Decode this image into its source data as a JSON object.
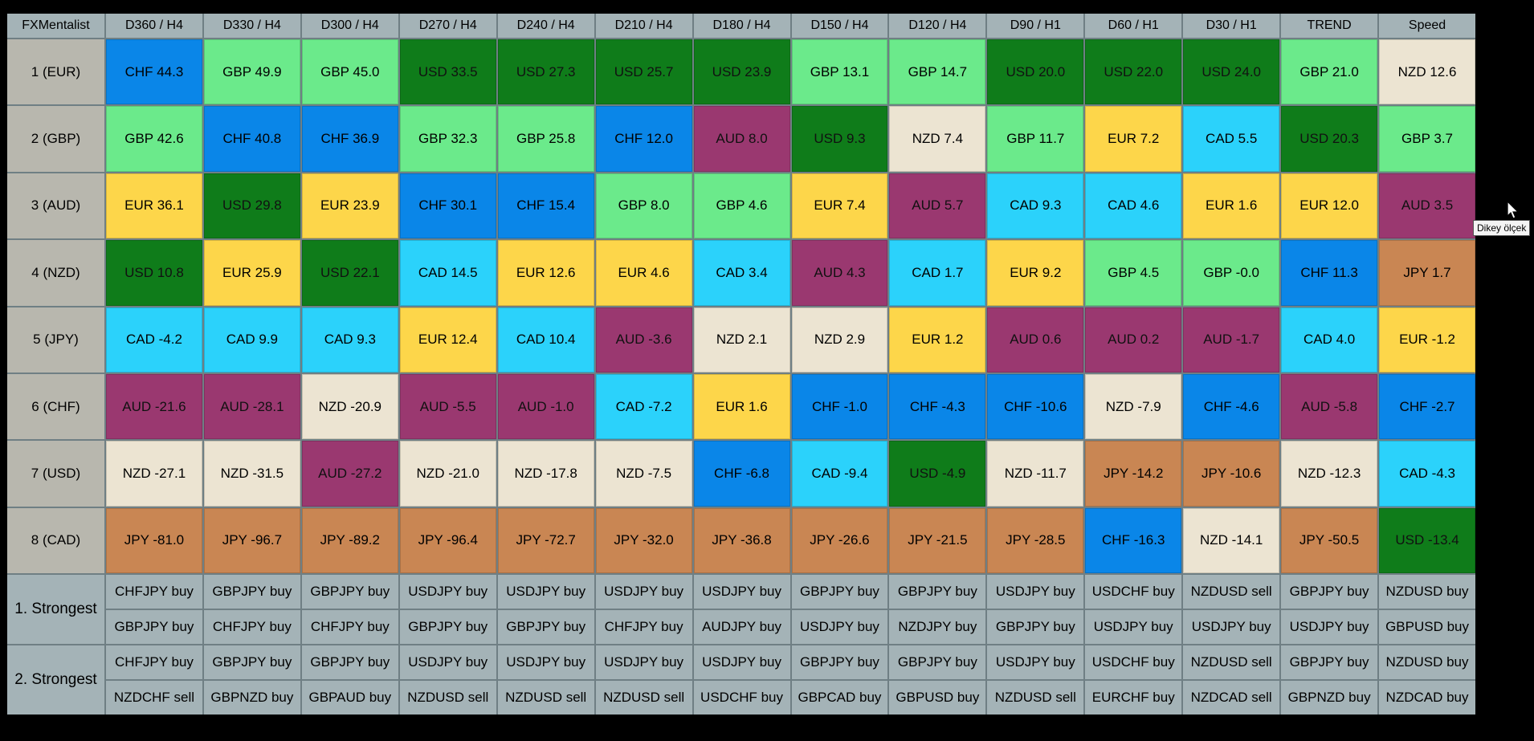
{
  "colors": {
    "CHF": "#0a86e8",
    "GBP": "#6bea8b",
    "USD": "#0f7c1a",
    "NZD": "#ece4d2",
    "AUD": "#9a3870",
    "EUR": "#fdd64a",
    "CAD": "#2bd2fb",
    "JPY": "#c98653"
  },
  "header": [
    "FXMentalist",
    "D360 / H4",
    "D330 / H4",
    "D300 / H4",
    "D270 / H4",
    "D240 / H4",
    "D210 / H4",
    "D180 / H4",
    "D150 / H4",
    "D120 / H4",
    "D90 / H1",
    "D60 / H1",
    "D30 / H1",
    "TREND",
    "Speed"
  ],
  "rows": [
    {
      "label": "1 (EUR)",
      "cells": [
        {
          "cur": "CHF",
          "text": "CHF 44.3"
        },
        {
          "cur": "GBP",
          "text": "GBP 49.9"
        },
        {
          "cur": "GBP",
          "text": "GBP 45.0"
        },
        {
          "cur": "USD",
          "text": "USD 33.5"
        },
        {
          "cur": "USD",
          "text": "USD 27.3"
        },
        {
          "cur": "USD",
          "text": "USD 25.7"
        },
        {
          "cur": "USD",
          "text": "USD 23.9"
        },
        {
          "cur": "GBP",
          "text": "GBP 13.1"
        },
        {
          "cur": "GBP",
          "text": "GBP 14.7"
        },
        {
          "cur": "USD",
          "text": "USD 20.0"
        },
        {
          "cur": "USD",
          "text": "USD 22.0"
        },
        {
          "cur": "USD",
          "text": "USD 24.0"
        },
        {
          "cur": "GBP",
          "text": "GBP 21.0"
        },
        {
          "cur": "NZD",
          "text": "NZD 12.6"
        }
      ]
    },
    {
      "label": "2 (GBP)",
      "cells": [
        {
          "cur": "GBP",
          "text": "GBP 42.6"
        },
        {
          "cur": "CHF",
          "text": "CHF 40.8"
        },
        {
          "cur": "CHF",
          "text": "CHF 36.9"
        },
        {
          "cur": "GBP",
          "text": "GBP 32.3"
        },
        {
          "cur": "GBP",
          "text": "GBP 25.8"
        },
        {
          "cur": "CHF",
          "text": "CHF 12.0"
        },
        {
          "cur": "AUD",
          "text": "AUD 8.0"
        },
        {
          "cur": "USD",
          "text": "USD 9.3"
        },
        {
          "cur": "NZD",
          "text": "NZD 7.4"
        },
        {
          "cur": "GBP",
          "text": "GBP 11.7"
        },
        {
          "cur": "EUR",
          "text": "EUR 7.2"
        },
        {
          "cur": "CAD",
          "text": "CAD 5.5"
        },
        {
          "cur": "USD",
          "text": "USD 20.3"
        },
        {
          "cur": "GBP",
          "text": "GBP 3.7"
        }
      ]
    },
    {
      "label": "3 (AUD)",
      "cells": [
        {
          "cur": "EUR",
          "text": "EUR 36.1"
        },
        {
          "cur": "USD",
          "text": "USD 29.8"
        },
        {
          "cur": "EUR",
          "text": "EUR 23.9"
        },
        {
          "cur": "CHF",
          "text": "CHF 30.1"
        },
        {
          "cur": "CHF",
          "text": "CHF 15.4"
        },
        {
          "cur": "GBP",
          "text": "GBP 8.0"
        },
        {
          "cur": "GBP",
          "text": "GBP 4.6"
        },
        {
          "cur": "EUR",
          "text": "EUR 7.4"
        },
        {
          "cur": "AUD",
          "text": "AUD 5.7"
        },
        {
          "cur": "CAD",
          "text": "CAD 9.3"
        },
        {
          "cur": "CAD",
          "text": "CAD 4.6"
        },
        {
          "cur": "EUR",
          "text": "EUR 1.6"
        },
        {
          "cur": "EUR",
          "text": "EUR 12.0"
        },
        {
          "cur": "AUD",
          "text": "AUD 3.5"
        }
      ]
    },
    {
      "label": "4 (NZD)",
      "cells": [
        {
          "cur": "USD",
          "text": "USD 10.8"
        },
        {
          "cur": "EUR",
          "text": "EUR 25.9"
        },
        {
          "cur": "USD",
          "text": "USD 22.1"
        },
        {
          "cur": "CAD",
          "text": "CAD 14.5"
        },
        {
          "cur": "EUR",
          "text": "EUR 12.6"
        },
        {
          "cur": "EUR",
          "text": "EUR 4.6"
        },
        {
          "cur": "CAD",
          "text": "CAD 3.4"
        },
        {
          "cur": "AUD",
          "text": "AUD 4.3"
        },
        {
          "cur": "CAD",
          "text": "CAD 1.7"
        },
        {
          "cur": "EUR",
          "text": "EUR 9.2"
        },
        {
          "cur": "GBP",
          "text": "GBP 4.5"
        },
        {
          "cur": "GBP",
          "text": "GBP -0.0"
        },
        {
          "cur": "CHF",
          "text": "CHF 11.3"
        },
        {
          "cur": "JPY",
          "text": "JPY 1.7"
        }
      ]
    },
    {
      "label": "5 (JPY)",
      "cells": [
        {
          "cur": "CAD",
          "text": "CAD -4.2"
        },
        {
          "cur": "CAD",
          "text": "CAD 9.9"
        },
        {
          "cur": "CAD",
          "text": "CAD 9.3"
        },
        {
          "cur": "EUR",
          "text": "EUR 12.4"
        },
        {
          "cur": "CAD",
          "text": "CAD 10.4"
        },
        {
          "cur": "AUD",
          "text": "AUD -3.6"
        },
        {
          "cur": "NZD",
          "text": "NZD 2.1"
        },
        {
          "cur": "NZD",
          "text": "NZD 2.9"
        },
        {
          "cur": "EUR",
          "text": "EUR 1.2"
        },
        {
          "cur": "AUD",
          "text": "AUD 0.6"
        },
        {
          "cur": "AUD",
          "text": "AUD 0.2"
        },
        {
          "cur": "AUD",
          "text": "AUD -1.7"
        },
        {
          "cur": "CAD",
          "text": "CAD 4.0"
        },
        {
          "cur": "EUR",
          "text": "EUR -1.2"
        }
      ]
    },
    {
      "label": "6 (CHF)",
      "cells": [
        {
          "cur": "AUD",
          "text": "AUD -21.6"
        },
        {
          "cur": "AUD",
          "text": "AUD -28.1"
        },
        {
          "cur": "NZD",
          "text": "NZD -20.9"
        },
        {
          "cur": "AUD",
          "text": "AUD -5.5"
        },
        {
          "cur": "AUD",
          "text": "AUD -1.0"
        },
        {
          "cur": "CAD",
          "text": "CAD -7.2"
        },
        {
          "cur": "EUR",
          "text": "EUR 1.6"
        },
        {
          "cur": "CHF",
          "text": "CHF -1.0"
        },
        {
          "cur": "CHF",
          "text": "CHF -4.3"
        },
        {
          "cur": "CHF",
          "text": "CHF -10.6"
        },
        {
          "cur": "NZD",
          "text": "NZD -7.9"
        },
        {
          "cur": "CHF",
          "text": "CHF -4.6"
        },
        {
          "cur": "AUD",
          "text": "AUD -5.8"
        },
        {
          "cur": "CHF",
          "text": "CHF -2.7"
        }
      ]
    },
    {
      "label": "7 (USD)",
      "cells": [
        {
          "cur": "NZD",
          "text": "NZD -27.1"
        },
        {
          "cur": "NZD",
          "text": "NZD -31.5"
        },
        {
          "cur": "AUD",
          "text": "AUD -27.2"
        },
        {
          "cur": "NZD",
          "text": "NZD -21.0"
        },
        {
          "cur": "NZD",
          "text": "NZD -17.8"
        },
        {
          "cur": "NZD",
          "text": "NZD -7.5"
        },
        {
          "cur": "CHF",
          "text": "CHF -6.8"
        },
        {
          "cur": "CAD",
          "text": "CAD -9.4"
        },
        {
          "cur": "USD",
          "text": "USD -4.9"
        },
        {
          "cur": "NZD",
          "text": "NZD -11.7"
        },
        {
          "cur": "JPY",
          "text": "JPY -14.2"
        },
        {
          "cur": "JPY",
          "text": "JPY -10.6"
        },
        {
          "cur": "NZD",
          "text": "NZD -12.3"
        },
        {
          "cur": "CAD",
          "text": "CAD -4.3"
        }
      ]
    },
    {
      "label": "8 (CAD)",
      "cells": [
        {
          "cur": "JPY",
          "text": "JPY -81.0"
        },
        {
          "cur": "JPY",
          "text": "JPY -96.7"
        },
        {
          "cur": "JPY",
          "text": "JPY -89.2"
        },
        {
          "cur": "JPY",
          "text": "JPY -96.4"
        },
        {
          "cur": "JPY",
          "text": "JPY -72.7"
        },
        {
          "cur": "JPY",
          "text": "JPY -32.0"
        },
        {
          "cur": "JPY",
          "text": "JPY -36.8"
        },
        {
          "cur": "JPY",
          "text": "JPY -26.6"
        },
        {
          "cur": "JPY",
          "text": "JPY -21.5"
        },
        {
          "cur": "JPY",
          "text": "JPY -28.5"
        },
        {
          "cur": "CHF",
          "text": "CHF -16.3"
        },
        {
          "cur": "NZD",
          "text": "NZD -14.1"
        },
        {
          "cur": "JPY",
          "text": "JPY -50.5"
        },
        {
          "cur": "USD",
          "text": "USD -13.4"
        }
      ]
    }
  ],
  "signals": [
    {
      "label": "1. Strongest",
      "lines": [
        [
          "CHFJPY buy",
          "GBPJPY buy",
          "GBPJPY buy",
          "USDJPY buy",
          "USDJPY buy",
          "USDJPY buy",
          "USDJPY buy",
          "GBPJPY buy",
          "GBPJPY buy",
          "USDJPY buy",
          "USDCHF buy",
          "NZDUSD sell",
          "GBPJPY buy",
          "NZDUSD buy"
        ],
        [
          "GBPJPY buy",
          "CHFJPY buy",
          "CHFJPY buy",
          "GBPJPY buy",
          "GBPJPY buy",
          "CHFJPY buy",
          "AUDJPY buy",
          "USDJPY buy",
          "NZDJPY buy",
          "GBPJPY buy",
          "USDJPY buy",
          "USDJPY buy",
          "USDJPY buy",
          "GBPUSD buy"
        ]
      ]
    },
    {
      "label": "2. Strongest",
      "lines": [
        [
          "CHFJPY buy",
          "GBPJPY buy",
          "GBPJPY buy",
          "USDJPY buy",
          "USDJPY buy",
          "USDJPY buy",
          "USDJPY buy",
          "GBPJPY buy",
          "GBPJPY buy",
          "USDJPY buy",
          "USDCHF buy",
          "NZDUSD sell",
          "GBPJPY buy",
          "NZDUSD buy"
        ],
        [
          "NZDCHF sell",
          "GBPNZD buy",
          "GBPAUD buy",
          "NZDUSD sell",
          "NZDUSD sell",
          "NZDUSD sell",
          "USDCHF buy",
          "GBPCAD buy",
          "GBPUSD buy",
          "NZDUSD sell",
          "EURCHF buy",
          "NZDCAD sell",
          "GBPNZD buy",
          "NZDCAD buy"
        ]
      ]
    }
  ],
  "tooltip": {
    "text": "Dikey ölçek"
  }
}
